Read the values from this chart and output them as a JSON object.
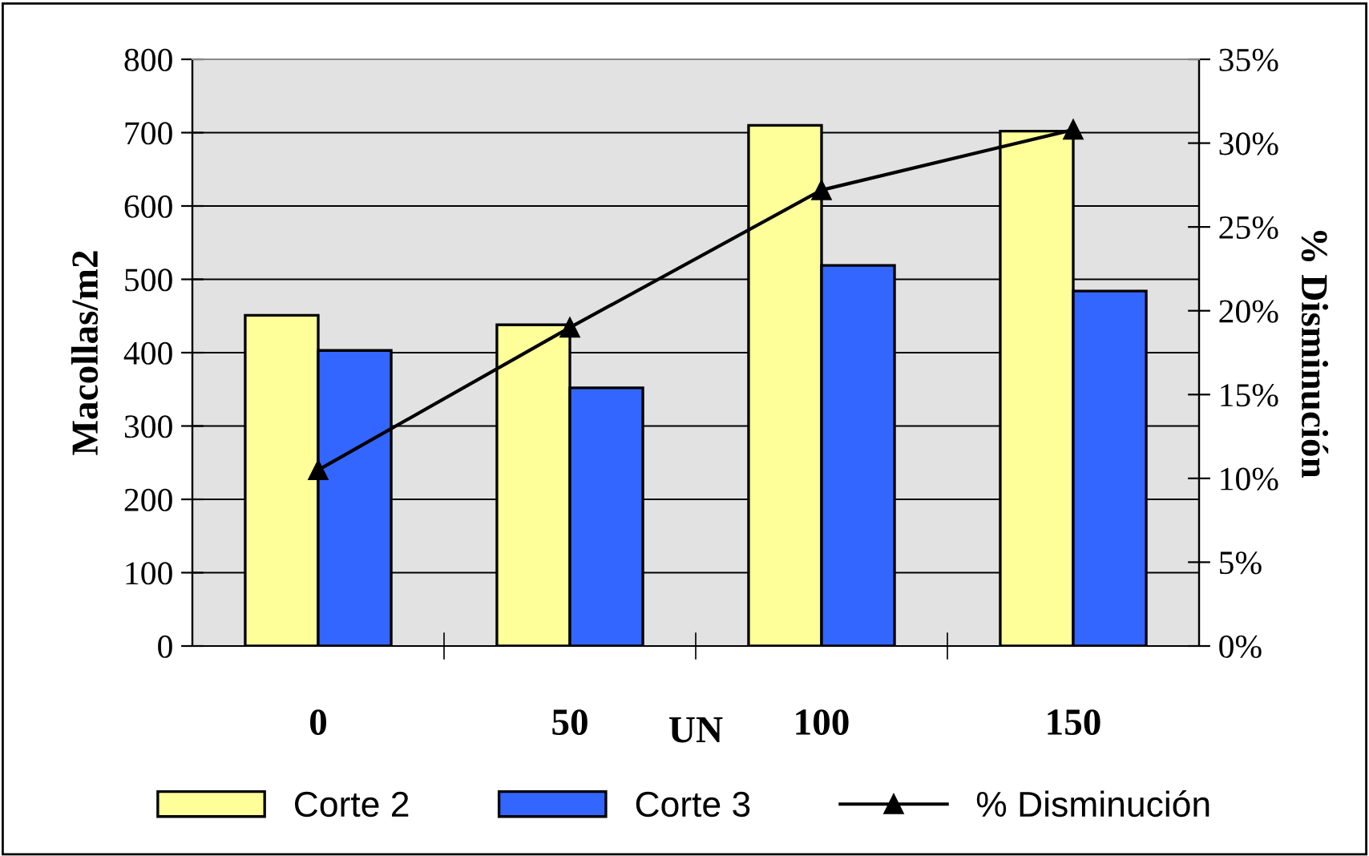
{
  "chart_data": {
    "type": "bar",
    "categories": [
      "0",
      "50",
      "100",
      "150"
    ],
    "xlabel": "UN",
    "ylabel": "Macollas/m2",
    "y2label": "% Disminución",
    "series": [
      {
        "name": "Corte 2",
        "color": "#ffff99",
        "values": [
          451,
          438,
          710,
          702
        ]
      },
      {
        "name": "Corte 3",
        "color": "#3366ff",
        "values": [
          403,
          352,
          519,
          484
        ]
      },
      {
        "name": "% Disminución",
        "type": "line",
        "axis": "y2",
        "color": "#000000",
        "marker": "triangle",
        "values": [
          10.5,
          19.0,
          27.2,
          30.8
        ]
      }
    ],
    "ylim": [
      0,
      800
    ],
    "yticks": [
      0,
      100,
      200,
      300,
      400,
      500,
      600,
      700,
      800
    ],
    "y2lim": [
      0,
      35
    ],
    "y2ticks": [
      {
        "value": 0,
        "label": "0%"
      },
      {
        "value": 5,
        "label": "5%"
      },
      {
        "value": 10,
        "label": "10%"
      },
      {
        "value": 15,
        "label": "15%"
      },
      {
        "value": 20,
        "label": "20%"
      },
      {
        "value": 25,
        "label": "25%"
      },
      {
        "value": 30,
        "label": "30%"
      },
      {
        "value": 35,
        "label": "35%"
      }
    ],
    "grid": "y",
    "legend": "bottom"
  }
}
